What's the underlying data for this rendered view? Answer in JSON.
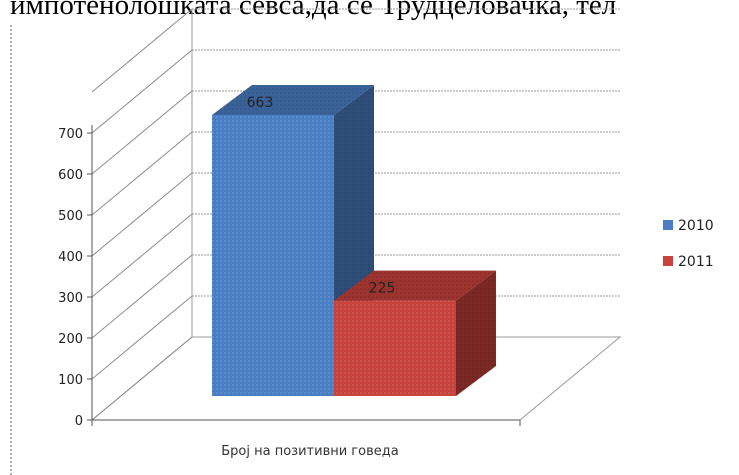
{
  "page": {
    "top_text": "импотенолошката севса,да се Трудцеловачка, тел"
  },
  "chart_data": {
    "type": "bar",
    "title": "",
    "xlabel": "",
    "ylabel": "",
    "categories": [
      "Број на позитивни говеда"
    ],
    "series": [
      {
        "name": "2010",
        "values": [
          663
        ],
        "color": "#4a7ec4"
      },
      {
        "name": "2011",
        "values": [
          225
        ],
        "color": "#c8423c"
      }
    ],
    "ylim": [
      0,
      700
    ],
    "yticks": [
      0,
      100,
      200,
      300,
      400,
      500,
      600,
      700
    ],
    "grid": true,
    "legend": "right",
    "three_d": true
  }
}
